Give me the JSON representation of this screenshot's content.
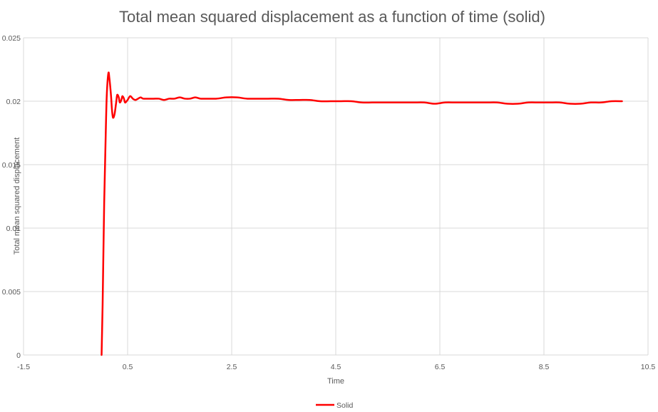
{
  "chart_data": {
    "type": "line",
    "title": "Total mean squared displacement as a function of time (solid)",
    "xlabel": "Time",
    "ylabel": "Total mean squared displacement",
    "xlim": [
      -1.5,
      10.5
    ],
    "ylim": [
      0,
      0.025
    ],
    "x_ticks": [
      "-1.5",
      "0.5",
      "2.5",
      "4.5",
      "6.5",
      "8.5",
      "10.5"
    ],
    "x_tick_values": [
      -1.5,
      0.5,
      2.5,
      4.5,
      6.5,
      8.5,
      10.5
    ],
    "y_ticks": [
      "0",
      "0.005",
      "0.01",
      "0.015",
      "0.02",
      "0.025"
    ],
    "y_tick_values": [
      0,
      0.005,
      0.01,
      0.015,
      0.02,
      0.025
    ],
    "grid": true,
    "legend_position": "bottom",
    "series": [
      {
        "name": "Solid",
        "color": "#ff0000",
        "x": [
          0.0,
          0.02,
          0.05,
          0.08,
          0.1,
          0.13,
          0.15,
          0.18,
          0.2,
          0.22,
          0.25,
          0.28,
          0.3,
          0.33,
          0.35,
          0.38,
          0.4,
          0.43,
          0.45,
          0.48,
          0.5,
          0.55,
          0.6,
          0.65,
          0.7,
          0.75,
          0.8,
          0.9,
          1.0,
          1.1,
          1.2,
          1.3,
          1.4,
          1.5,
          1.6,
          1.7,
          1.8,
          1.9,
          2.0,
          2.2,
          2.4,
          2.6,
          2.8,
          3.0,
          3.2,
          3.4,
          3.6,
          3.8,
          4.0,
          4.2,
          4.4,
          4.6,
          4.8,
          5.0,
          5.2,
          5.4,
          5.6,
          5.8,
          6.0,
          6.2,
          6.4,
          6.6,
          6.8,
          7.0,
          7.2,
          7.4,
          7.6,
          7.8,
          8.0,
          8.2,
          8.4,
          8.6,
          8.8,
          9.0,
          9.2,
          9.4,
          9.6,
          9.8,
          10.0
        ],
        "y": [
          0.0,
          0.004,
          0.012,
          0.0175,
          0.0205,
          0.0222,
          0.0218,
          0.0205,
          0.0193,
          0.0187,
          0.019,
          0.0199,
          0.0205,
          0.0203,
          0.0199,
          0.0201,
          0.0204,
          0.0202,
          0.0199,
          0.02,
          0.0201,
          0.0204,
          0.0202,
          0.0201,
          0.0202,
          0.0203,
          0.0202,
          0.0202,
          0.0202,
          0.0202,
          0.0201,
          0.0202,
          0.0202,
          0.0203,
          0.0202,
          0.0202,
          0.0203,
          0.0202,
          0.0202,
          0.0202,
          0.0203,
          0.0203,
          0.0202,
          0.0202,
          0.0202,
          0.0202,
          0.0201,
          0.0201,
          0.0201,
          0.02,
          0.02,
          0.02,
          0.02,
          0.0199,
          0.0199,
          0.0199,
          0.0199,
          0.0199,
          0.0199,
          0.0199,
          0.0198,
          0.0199,
          0.0199,
          0.0199,
          0.0199,
          0.0199,
          0.0199,
          0.0198,
          0.0198,
          0.0199,
          0.0199,
          0.0199,
          0.0199,
          0.0198,
          0.0198,
          0.0199,
          0.0199,
          0.02,
          0.02
        ]
      }
    ]
  }
}
